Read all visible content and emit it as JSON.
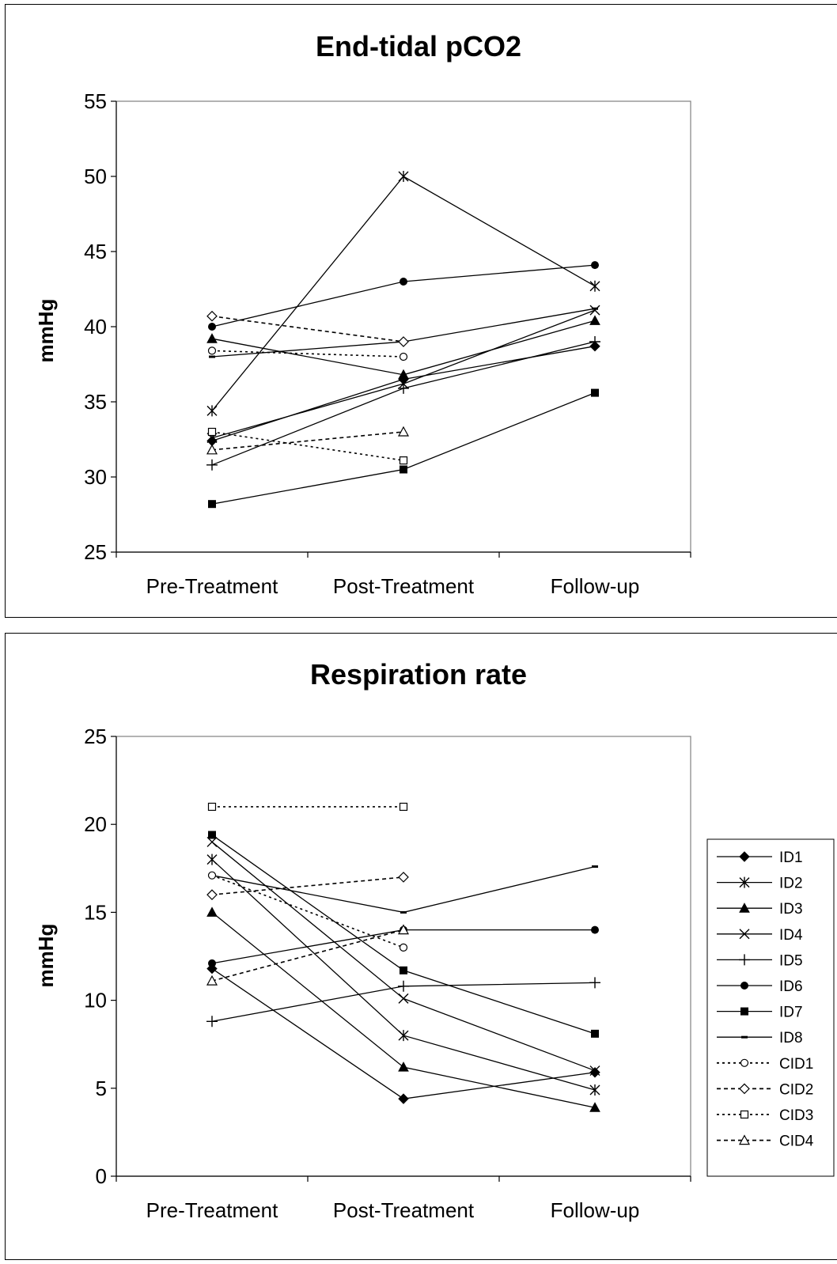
{
  "chart_data": [
    {
      "type": "line",
      "title": "End-tidal pCO2",
      "xlabel": "",
      "ylabel": "mmHg",
      "categories": [
        "Pre-Treatment",
        "Post-Treatment",
        "Follow-up"
      ],
      "ylim": [
        25,
        55
      ],
      "yticks": [
        25,
        30,
        35,
        40,
        45,
        50,
        55
      ],
      "grid": false,
      "series": [
        {
          "name": "ID1",
          "marker": "diamond-filled",
          "dash": "solid",
          "values": [
            32.4,
            36.5,
            38.7
          ]
        },
        {
          "name": "ID2",
          "marker": "asterisk",
          "dash": "solid",
          "values": [
            34.4,
            50.0,
            42.7
          ]
        },
        {
          "name": "ID3",
          "marker": "triangle-filled",
          "dash": "solid",
          "values": [
            39.2,
            36.8,
            40.4
          ]
        },
        {
          "name": "ID4",
          "marker": "x",
          "dash": "solid",
          "values": [
            32.6,
            36.2,
            41.1
          ]
        },
        {
          "name": "ID5",
          "marker": "plus",
          "dash": "solid",
          "values": [
            30.8,
            35.9,
            39.0
          ]
        },
        {
          "name": "ID6",
          "marker": "circle-filled",
          "dash": "solid",
          "values": [
            40.0,
            43.0,
            44.1
          ]
        },
        {
          "name": "ID7",
          "marker": "square-filled",
          "dash": "solid",
          "values": [
            28.2,
            30.5,
            35.6
          ]
        },
        {
          "name": "ID8",
          "marker": "dash",
          "dash": "solid",
          "values": [
            38.0,
            39.0,
            41.2
          ]
        },
        {
          "name": "CID1",
          "marker": "circle-open",
          "dash": "dotted",
          "values": [
            38.4,
            38.0,
            null
          ]
        },
        {
          "name": "CID2",
          "marker": "diamond-open",
          "dash": "dashed",
          "values": [
            40.7,
            39.0,
            null
          ]
        },
        {
          "name": "CID3",
          "marker": "square-open",
          "dash": "dotted",
          "values": [
            33.0,
            31.1,
            null
          ]
        },
        {
          "name": "CID4",
          "marker": "triangle-open",
          "dash": "dashed",
          "values": [
            31.8,
            33.0,
            null
          ]
        }
      ]
    },
    {
      "type": "line",
      "title": "Respiration rate",
      "xlabel": "",
      "ylabel": "mmHg",
      "categories": [
        "Pre-Treatment",
        "Post-Treatment",
        "Follow-up"
      ],
      "ylim": [
        0,
        25
      ],
      "yticks": [
        0,
        5,
        10,
        15,
        20,
        25
      ],
      "grid": false,
      "legend_position": "right",
      "series": [
        {
          "name": "ID1",
          "marker": "diamond-filled",
          "dash": "solid",
          "values": [
            11.8,
            4.4,
            5.9
          ]
        },
        {
          "name": "ID2",
          "marker": "asterisk",
          "dash": "solid",
          "values": [
            18.0,
            8.0,
            4.9
          ]
        },
        {
          "name": "ID3",
          "marker": "triangle-filled",
          "dash": "solid",
          "values": [
            15.0,
            6.2,
            3.9
          ]
        },
        {
          "name": "ID4",
          "marker": "x",
          "dash": "solid",
          "values": [
            19.0,
            10.1,
            6.0
          ]
        },
        {
          "name": "ID5",
          "marker": "plus",
          "dash": "solid",
          "values": [
            8.8,
            10.8,
            11.0
          ]
        },
        {
          "name": "ID6",
          "marker": "circle-filled",
          "dash": "solid",
          "values": [
            12.1,
            14.0,
            14.0
          ]
        },
        {
          "name": "ID7",
          "marker": "square-filled",
          "dash": "solid",
          "values": [
            19.4,
            11.7,
            8.1
          ]
        },
        {
          "name": "ID8",
          "marker": "dash",
          "dash": "solid",
          "values": [
            17.1,
            15.0,
            17.6
          ]
        },
        {
          "name": "CID1",
          "marker": "circle-open",
          "dash": "dotted",
          "values": [
            17.1,
            13.0,
            null
          ]
        },
        {
          "name": "CID2",
          "marker": "diamond-open",
          "dash": "dashed",
          "values": [
            16.0,
            17.0,
            null
          ]
        },
        {
          "name": "CID3",
          "marker": "square-open",
          "dash": "dotted",
          "values": [
            21.0,
            21.0,
            null
          ]
        },
        {
          "name": "CID4",
          "marker": "triangle-open",
          "dash": "dashed",
          "values": [
            11.1,
            14.0,
            null
          ]
        }
      ]
    }
  ]
}
